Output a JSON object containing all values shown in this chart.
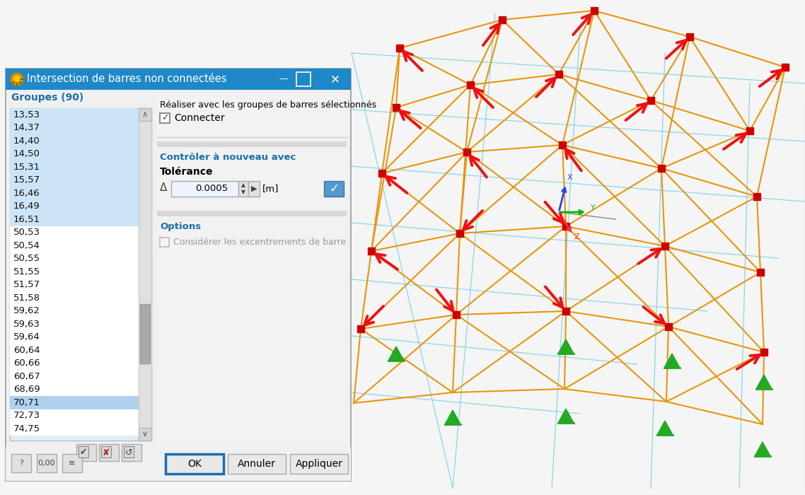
{
  "dialog_title": "Intersection de barres non connectées",
  "titlebar_color": "#1e88c8",
  "titlebar_text_color": "#ffffff",
  "dialog_bg": "#f0f0f0",
  "list_bg": "#ffffff",
  "list_selected_bg": "#b8d8f0",
  "list_unsel_bg": "#ddeeff",
  "right_panel_bg": "#f8f8f8",
  "groupes_label": "Groupes (90)",
  "list_items": [
    "13,53",
    "14,37",
    "14,40",
    "14,50",
    "15,31",
    "15,57",
    "16,46",
    "16,49",
    "16,51",
    "50,53",
    "50,54",
    "50,55",
    "51,55",
    "51,57",
    "51,58",
    "59,62",
    "59,63",
    "59,64",
    "60,64",
    "60,66",
    "60,67",
    "68,69",
    "70,71",
    "72,73",
    "74,75"
  ],
  "list_selected_rows": [
    0,
    1,
    2,
    3,
    4,
    5,
    6,
    7,
    8,
    22
  ],
  "list_highlighted": [
    22
  ],
  "right_section1": "Réaliser avec les groupes de barres sélectionnés",
  "checkbox_label": "Connecter",
  "right_section2": "Contrôler à nouveau avec",
  "tolerance_label": "Tolérance",
  "tolerance_value": "0.0005",
  "tolerance_unit": "[m]",
  "options_label": "Options",
  "options_checkbox": "Considérer les excentrements de barre",
  "ok_button": "OK",
  "cancel_button": "Annuler",
  "apply_button": "Appliquer",
  "structure_bg": "#f5f5f5",
  "orange_color": "#E8960A",
  "cyan_color": "#6ECFE8",
  "red_arrow_color": "#EE1111",
  "node_color": "#CC0000",
  "support_color": "#22AA22",
  "section1_bg": "#f0f0f0",
  "section2_bg": "#e8e8ee",
  "section3_bg": "#e8e8ee",
  "sep_color": "#bbbbbb",
  "blue_text": "#1a6faa"
}
